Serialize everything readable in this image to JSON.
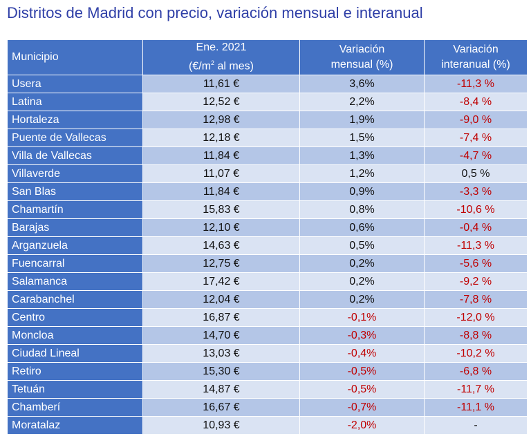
{
  "title": "Distritos de Madrid con precio, variación mensual e interanual",
  "headers": {
    "municipio": "Municipio",
    "precio_l1": "Ene. 2021",
    "precio_l2a": "(€/m",
    "precio_sup": "2",
    "precio_l2b": " al mes)",
    "mensual_l1": "Variación",
    "mensual_l2": "mensual (%)",
    "interanual_l1": "Variación",
    "interanual_l2": "interanual (%)"
  },
  "rows": [
    {
      "municipio": "Usera",
      "precio": "11,61 €",
      "mensual": "3,6%",
      "interanual": "-11,3 %"
    },
    {
      "municipio": "Latina",
      "precio": "12,52 €",
      "mensual": "2,2%",
      "interanual": "-8,4 %"
    },
    {
      "municipio": "Hortaleza",
      "precio": "12,98 €",
      "mensual": "1,9%",
      "interanual": "-9,0 %"
    },
    {
      "municipio": "Puente de Vallecas",
      "precio": "12,18 €",
      "mensual": "1,5%",
      "interanual": "-7,4 %"
    },
    {
      "municipio": "Villa de Vallecas",
      "precio": "11,84 €",
      "mensual": "1,3%",
      "interanual": "-4,7 %"
    },
    {
      "municipio": "Villaverde",
      "precio": "11,07 €",
      "mensual": "1,2%",
      "interanual": "0,5 %"
    },
    {
      "municipio": "San Blas",
      "precio": "11,84 €",
      "mensual": "0,9%",
      "interanual": "-3,3 %"
    },
    {
      "municipio": "Chamartín",
      "precio": "15,83 €",
      "mensual": "0,8%",
      "interanual": "-10,6 %"
    },
    {
      "municipio": "Barajas",
      "precio": "12,10 €",
      "mensual": "0,6%",
      "interanual": "-0,4 %"
    },
    {
      "municipio": "Arganzuela",
      "precio": "14,63 €",
      "mensual": "0,5%",
      "interanual": "-11,3 %"
    },
    {
      "municipio": "Fuencarral",
      "precio": "12,75 €",
      "mensual": "0,2%",
      "interanual": "-5,6 %"
    },
    {
      "municipio": "Salamanca",
      "precio": "17,42 €",
      "mensual": "0,2%",
      "interanual": "-9,2 %"
    },
    {
      "municipio": "Carabanchel",
      "precio": "12,04 €",
      "mensual": "0,2%",
      "interanual": "-7,8 %"
    },
    {
      "municipio": "Centro",
      "precio": "16,87 €",
      "mensual": "-0,1%",
      "interanual": "-12,0 %"
    },
    {
      "municipio": "Moncloa",
      "precio": "14,70 €",
      "mensual": "-0,3%",
      "interanual": "-8,8 %"
    },
    {
      "municipio": "Ciudad Lineal",
      "precio": "13,03 €",
      "mensual": "-0,4%",
      "interanual": "-10,2 %"
    },
    {
      "municipio": "Retiro",
      "precio": "15,30 €",
      "mensual": "-0,5%",
      "interanual": "-6,8 %"
    },
    {
      "municipio": "Tetuán",
      "precio": "14,87 €",
      "mensual": "-0,5%",
      "interanual": "-11,7 %"
    },
    {
      "municipio": "Chamberí",
      "precio": "16,67 €",
      "mensual": "-0,7%",
      "interanual": "-11,1 %"
    },
    {
      "municipio": "Moratalaz",
      "precio": "10,93 €",
      "mensual": "-2,0%",
      "interanual": "-"
    }
  ],
  "colors": {
    "title": "#2f3fa7",
    "header_bg": "#4472c4",
    "row_dark": "#b4c6e7",
    "row_light": "#dae3f3",
    "negative": "#c00000"
  }
}
